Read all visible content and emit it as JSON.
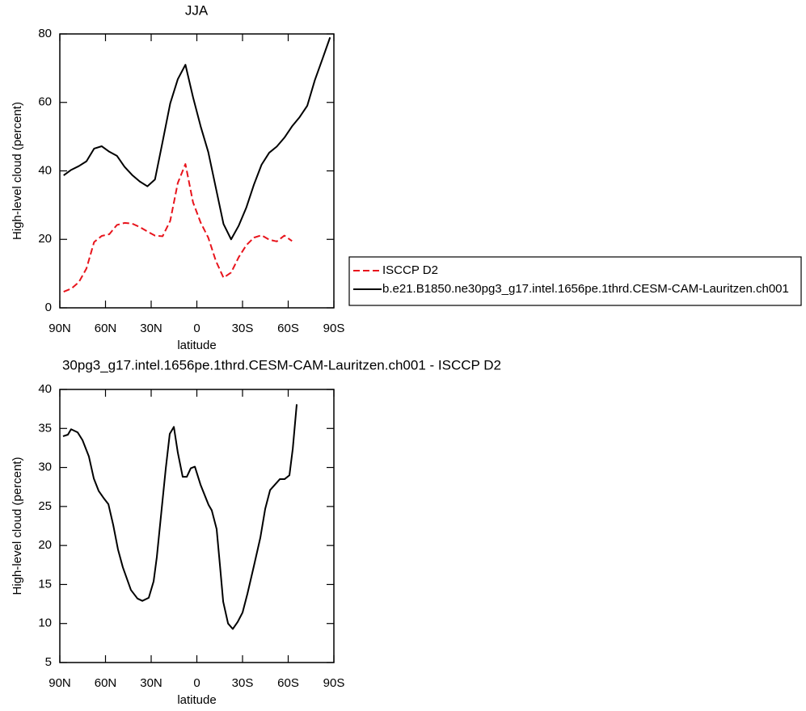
{
  "chart_data": [
    {
      "type": "line",
      "title": "JJA",
      "xlabel": "latitude",
      "ylabel": "High-level cloud (percent)",
      "x": [
        87.5,
        82.5,
        77.5,
        72.5,
        67.5,
        62.5,
        57.5,
        52.5,
        47.5,
        42.5,
        37.5,
        32.5,
        27.5,
        22.5,
        17.5,
        12.5,
        7.5,
        2.5,
        -2.5,
        -7.5,
        -12.5,
        -17.5,
        -22.5,
        -27.5,
        -32.5,
        -37.5,
        -42.5,
        -47.5,
        -52.5,
        -57.5,
        -62.5,
        -67.5,
        -72.5,
        -77.5,
        -82.5,
        -87.5
      ],
      "series": [
        {
          "name": "ISCCP D2",
          "color": "#e8141c",
          "line_style": "dashed",
          "values": [
            4.7,
            5.6,
            7.5,
            11.5,
            19.2,
            21,
            21.5,
            24.2,
            24.8,
            24.6,
            23.6,
            22.3,
            21.1,
            20.9,
            25.4,
            36.5,
            42,
            30.8,
            24.9,
            20.5,
            13.7,
            8.8,
            10.3,
            14.8,
            18.3,
            20.5,
            21.2,
            19.9,
            19.4,
            21.1,
            19.5,
            null,
            null,
            null,
            null,
            null
          ]
        },
        {
          "name": "b.e21.B1850.ne30pg3_g17.intel.1656pe.1thrd.CESM-CAM-Lauritzen.ch001",
          "color": "#000000",
          "line_style": "solid",
          "values": [
            38.7,
            40.3,
            41.4,
            42.8,
            46.5,
            47.2,
            45.6,
            44.4,
            41.2,
            38.8,
            36.9,
            35.5,
            37.5,
            48.5,
            59.7,
            66.8,
            71,
            61.5,
            53,
            45.5,
            35,
            24.5,
            20,
            24,
            29.3,
            36,
            41.8,
            45.3,
            47.1,
            49.7,
            53,
            55.7,
            59,
            66.5,
            72.7,
            79
          ]
        }
      ],
      "xlim": [
        90,
        -90
      ],
      "xticks": [
        {
          "value": 90,
          "label": "90N"
        },
        {
          "value": 60,
          "label": "60N"
        },
        {
          "value": 30,
          "label": "30N"
        },
        0,
        {
          "value": -30,
          "label": "30S"
        },
        {
          "value": -60,
          "label": "60S"
        },
        {
          "value": -90,
          "label": "90S"
        }
      ],
      "ylim": [
        0,
        80
      ],
      "yticks": [
        0,
        20,
        40,
        60,
        80
      ],
      "legend": "right"
    },
    {
      "type": "line",
      "title": "30pg3_g17.intel.1656pe.1thrd.CESM-CAM-Lauritzen.ch001 - ISCCP D2",
      "xlabel": "latitude",
      "ylabel": "High-level cloud (percent)",
      "x": [
        87.9,
        84.7,
        82.6,
        78.3,
        75.1,
        70.9,
        67.7,
        64.5,
        61.3,
        58.1,
        54.9,
        51.8,
        48.6,
        43.3,
        39,
        35.8,
        31.6,
        28.4,
        26.3,
        23.1,
        20.4,
        17.8,
        15.1,
        12.5,
        9.3,
        6.6,
        4,
        1.3,
        -2.4,
        -7.7,
        -9.8,
        -13,
        -15.2,
        -17.3,
        -20.5,
        -23.6,
        -26.8,
        -30,
        -33.2,
        -37.5,
        -41.7,
        -44.9,
        -48.1,
        -51.3,
        -54.5,
        -57.6,
        -60.8,
        -63,
        -65.6
      ],
      "series": [
        {
          "color": "#000000",
          "line_style": "solid",
          "values": [
            34,
            34.2,
            34.9,
            34.5,
            33.5,
            31.4,
            28.6,
            27,
            26.1,
            25.3,
            22.6,
            19.5,
            17.2,
            14.3,
            13.2,
            12.9,
            13.3,
            15.4,
            18.5,
            24.7,
            29.9,
            34.3,
            35.2,
            31.9,
            28.8,
            28.8,
            29.9,
            30.1,
            27.8,
            25.2,
            24.5,
            22.1,
            17.4,
            12.8,
            10,
            9.3,
            10.2,
            11.4,
            13.8,
            17.4,
            21,
            24.7,
            27.1,
            27.8,
            28.5,
            28.5,
            29,
            32.4,
            38.1
          ]
        }
      ],
      "xlim": [
        90,
        -90
      ],
      "xticks": [
        {
          "value": 90,
          "label": "90N"
        },
        {
          "value": 60,
          "label": "60N"
        },
        {
          "value": 30,
          "label": "30N"
        },
        0,
        {
          "value": -30,
          "label": "30S"
        },
        {
          "value": -60,
          "label": "60S"
        },
        {
          "value": -90,
          "label": "90S"
        }
      ],
      "ylim": [
        5,
        40
      ],
      "yticks": [
        5,
        10,
        15,
        20,
        25,
        30,
        35,
        40
      ]
    }
  ]
}
